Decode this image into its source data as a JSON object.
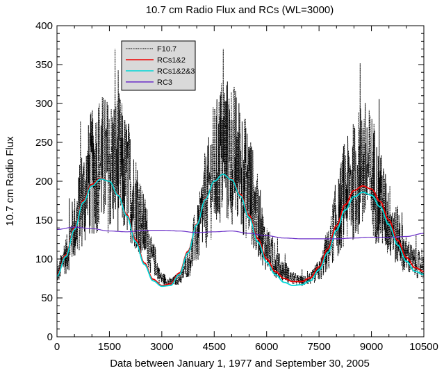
{
  "chart_data": {
    "type": "line",
    "title": "10.7 cm Radio Flux and RCs (WL=3000)",
    "xlabel": "Data between January 1, 1977 and September 30, 2005",
    "ylabel": "10.7 cm Radio Flux",
    "xlim": [
      0,
      10500
    ],
    "ylim": [
      0,
      400
    ],
    "xticks": [
      0,
      1500,
      3000,
      4500,
      6000,
      7500,
      9000,
      10500
    ],
    "yticks": [
      0,
      50,
      100,
      150,
      200,
      250,
      300,
      350,
      400
    ],
    "xtick_labels": [
      "0",
      "1500",
      "3000",
      "4500",
      "6000",
      "7500",
      "9000",
      "10500"
    ],
    "ytick_labels": [
      "0",
      "50",
      "100",
      "150",
      "200",
      "250",
      "300",
      "350",
      "400"
    ],
    "grid": false,
    "legend": {
      "position": "top-left"
    },
    "series": [
      {
        "name": "F10.7",
        "color": "#000000",
        "style": "dotted",
        "note_kind": "high-frequency daily noise around the smoothed cycle",
        "x": [
          0,
          250,
          500,
          750,
          1000,
          1250,
          1500,
          1750,
          2000,
          2250,
          2500,
          2750,
          3000,
          3250,
          3500,
          3750,
          4000,
          4250,
          4500,
          4750,
          5000,
          5250,
          5500,
          5750,
          6000,
          6250,
          6500,
          6750,
          7000,
          7250,
          7500,
          7750,
          8000,
          8250,
          8500,
          8750,
          9000,
          9250,
          9500,
          9750,
          10000,
          10250,
          10500
        ],
        "y": [
          80,
          105,
          140,
          180,
          210,
          225,
          220,
          225,
          205,
          175,
          140,
          100,
          75,
          70,
          75,
          95,
          130,
          175,
          215,
          240,
          235,
          220,
          195,
          150,
          115,
          95,
          85,
          75,
          72,
          75,
          85,
          110,
          150,
          185,
          200,
          220,
          210,
          175,
          150,
          130,
          105,
          95,
          90
        ]
      },
      {
        "name": "RCs1&2",
        "color": "#ee0000",
        "style": "solid",
        "x": [
          0,
          250,
          500,
          750,
          1000,
          1250,
          1500,
          1750,
          2000,
          2250,
          2500,
          2750,
          3000,
          3250,
          3500,
          3750,
          4000,
          4250,
          4500,
          4750,
          5000,
          5250,
          5500,
          5750,
          6000,
          6250,
          6500,
          6750,
          7000,
          7250,
          7500,
          7750,
          8000,
          8250,
          8500,
          8750,
          9000,
          9250,
          9500,
          9750,
          10000,
          10250,
          10500
        ],
        "y": [
          80,
          105,
          140,
          175,
          196,
          204,
          200,
          183,
          157,
          125,
          95,
          74,
          66,
          68,
          82,
          110,
          145,
          178,
          200,
          209,
          203,
          183,
          156,
          126,
          100,
          84,
          75,
          71,
          71,
          76,
          90,
          113,
          143,
          170,
          188,
          194,
          190,
          174,
          150,
          124,
          102,
          89,
          84
        ]
      },
      {
        "name": "RCs1&2&3",
        "color": "#00d8d8",
        "style": "solid",
        "x": [
          0,
          250,
          500,
          750,
          1000,
          1250,
          1500,
          1750,
          2000,
          2250,
          2500,
          2750,
          3000,
          3250,
          3500,
          3750,
          4000,
          4250,
          4500,
          4750,
          5000,
          5250,
          5500,
          5750,
          6000,
          6250,
          6500,
          6750,
          7000,
          7250,
          7500,
          7750,
          8000,
          8250,
          8500,
          8750,
          9000,
          9250,
          9500,
          9750,
          10000,
          10250,
          10500
        ],
        "y": [
          78,
          103,
          138,
          173,
          194,
          203,
          200,
          182,
          155,
          122,
          93,
          72,
          65,
          66,
          80,
          108,
          144,
          177,
          200,
          209,
          202,
          181,
          153,
          122,
          96,
          80,
          70,
          66,
          67,
          72,
          86,
          108,
          137,
          163,
          180,
          186,
          182,
          167,
          144,
          118,
          97,
          84,
          80
        ]
      },
      {
        "name": "RC3",
        "color": "#6a2fc8",
        "style": "solid",
        "x": [
          0,
          500,
          1000,
          1500,
          2000,
          2500,
          3000,
          3500,
          4000,
          4500,
          5000,
          5500,
          6000,
          6500,
          7000,
          7500,
          8000,
          8500,
          9000,
          9500,
          10000,
          10500
        ],
        "y": [
          138,
          141,
          139,
          136,
          135,
          137,
          137,
          136,
          134,
          135,
          136,
          133,
          130,
          127,
          126,
          126,
          126,
          127,
          128,
          128,
          129,
          133
        ]
      }
    ]
  }
}
